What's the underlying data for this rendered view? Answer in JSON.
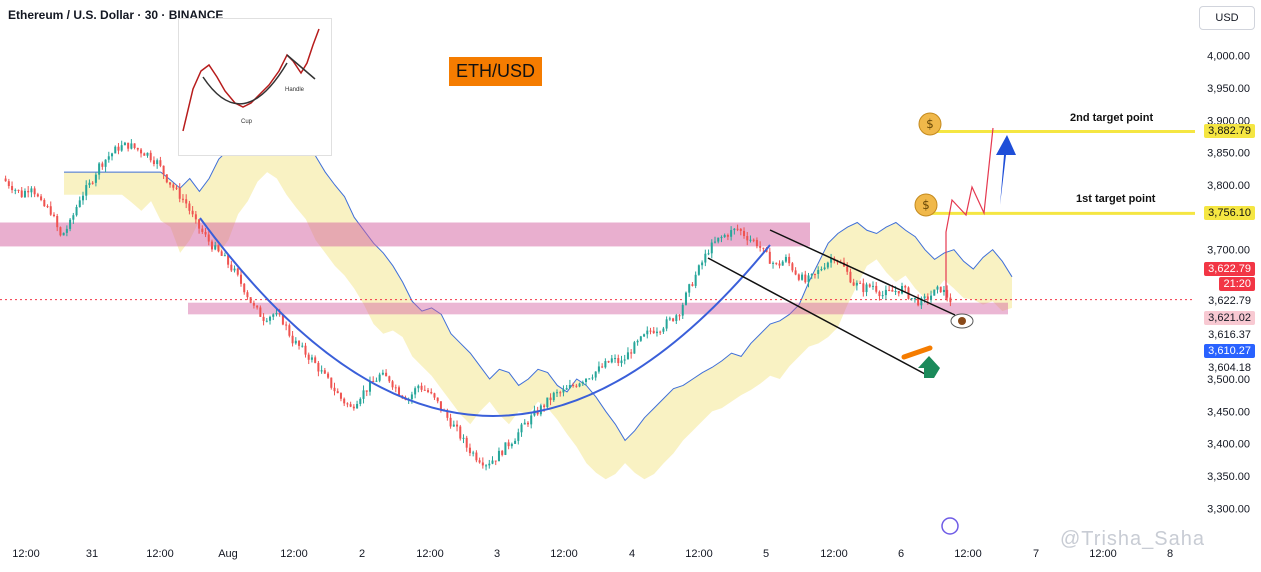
{
  "header": {
    "title": "Ethereum / U.S. Dollar · 30 · BINANCE",
    "pair_label": "ETH/USD",
    "currency_button": "USD"
  },
  "watermark": "@Trisha_Saha",
  "annotations": {
    "first_target": "1st target point",
    "second_target": "2nd target point",
    "inset_cup": "Cup",
    "inset_handle": "Handle"
  },
  "price_labels": {
    "target2": "3,882.79",
    "target1": "3,756.10",
    "last": "3,622.79",
    "countdown": "21:20",
    "line_a": "3,622.79",
    "line_b": "3,621.02",
    "line_c": "3,616.37",
    "line_d": "3,610.27",
    "line_e": "3,604.18"
  },
  "colors": {
    "up": "#26a69a",
    "down": "#ef5350",
    "cup_curve": "#3a5fd9",
    "zone": "#d35fa0",
    "target_line": "#f5e642",
    "accent": "#f57c00",
    "price_tag": "#f23645",
    "blue_tag": "#2962ff"
  },
  "chart_data": {
    "type": "candlestick",
    "title": "Ethereum / U.S. Dollar · 30 · BINANCE",
    "y_ticks": [
      4000,
      3950,
      3900,
      3850,
      3800,
      3700,
      3500,
      3450,
      3400,
      3350,
      3300
    ],
    "y_tick_labels": [
      "4,000.00",
      "3,950.00",
      "3,900.00",
      "3,850.00",
      "3,800.00",
      "3,700.00",
      "3,500.00",
      "3,450.00",
      "3,400.00",
      "3,350.00",
      "3,300.00"
    ],
    "x_tick_labels": [
      "12:00",
      "31",
      "12:00",
      "Aug",
      "12:00",
      "2",
      "12:00",
      "3",
      "12:00",
      "4",
      "12:00",
      "5",
      "12:00",
      "6",
      "12:00",
      "7",
      "12:00",
      "8"
    ],
    "close_path": [
      3810,
      3798,
      3785,
      3800,
      3770,
      3760,
      3720,
      3740,
      3780,
      3800,
      3830,
      3845,
      3858,
      3862,
      3855,
      3848,
      3835,
      3810,
      3790,
      3772,
      3740,
      3720,
      3700,
      3685,
      3665,
      3640,
      3610,
      3595,
      3600,
      3590,
      3560,
      3545,
      3530,
      3510,
      3490,
      3470,
      3455,
      3475,
      3490,
      3505,
      3500,
      3480,
      3470,
      3490,
      3480,
      3462,
      3440,
      3420,
      3395,
      3380,
      3370,
      3378,
      3395,
      3410,
      3430,
      3445,
      3460,
      3475,
      3480,
      3490,
      3500,
      3508,
      3518,
      3530,
      3525,
      3545,
      3560,
      3575,
      3580,
      3590,
      3605,
      3640,
      3670,
      3700,
      3715,
      3725,
      3732,
      3720,
      3710,
      3690,
      3675,
      3685,
      3665,
      3650,
      3660,
      3678,
      3690,
      3672,
      3648,
      3640,
      3645,
      3630,
      3635,
      3640,
      3625,
      3618,
      3630,
      3640,
      3622
    ],
    "resistance_zone": [
      3705,
      3742
    ],
    "support_zone": [
      3600,
      3618
    ],
    "target_1": 3756.1,
    "target_2": 3882.79,
    "last_price": 3622.79
  }
}
